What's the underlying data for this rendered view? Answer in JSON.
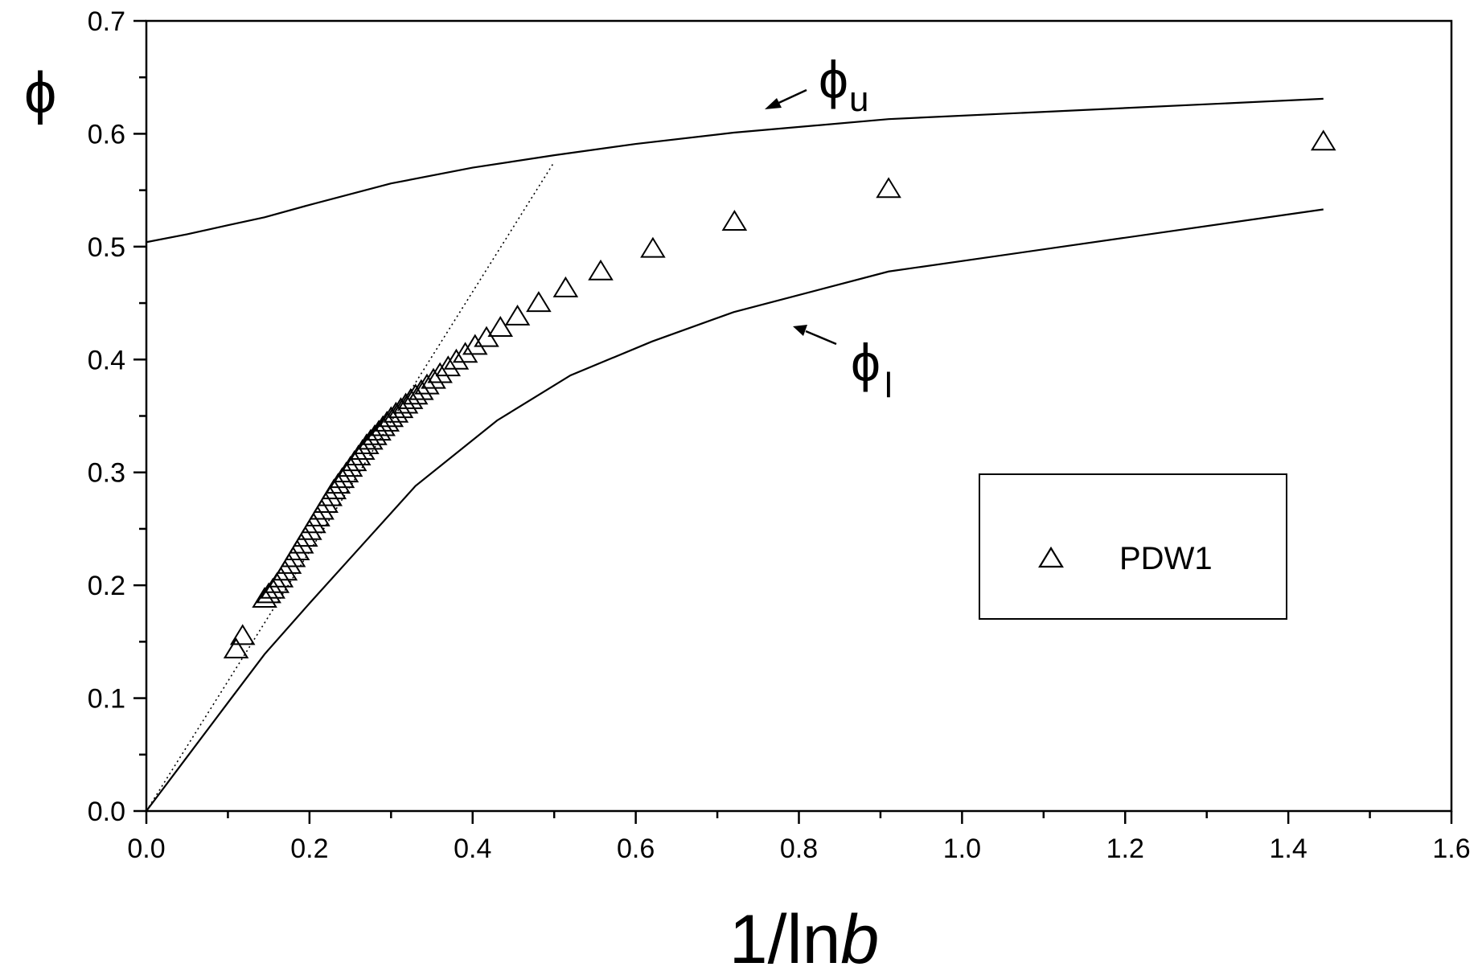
{
  "chart_data": {
    "type": "scatter",
    "xlabel": "1/ln",
    "xlabel_italic": "b",
    "ylabel": "ϕ",
    "xlim": [
      0.0,
      1.6
    ],
    "ylim": [
      0.0,
      0.7
    ],
    "x_ticks": [
      "0.0",
      "0.2",
      "0.4",
      "0.6",
      "0.8",
      "1.0",
      "1.2",
      "1.4",
      "1.6"
    ],
    "y_ticks": [
      "0.0",
      "0.1",
      "0.2",
      "0.3",
      "0.4",
      "0.5",
      "0.6",
      "0.7"
    ],
    "grid": false,
    "legend": {
      "placement": "center-right",
      "entries": [
        {
          "marker": "open-triangle",
          "label": "PDW1"
        }
      ]
    },
    "annotations": [
      {
        "symbol": "ϕ",
        "subscript": "u",
        "points_to": "upper-curve"
      },
      {
        "symbol": "ϕ",
        "subscript": "l",
        "points_to": "lower-curve"
      }
    ],
    "series": [
      {
        "name": "PDW1",
        "style": "open-triangle",
        "x": [
          0.11,
          0.118,
          0.145,
          0.15,
          0.155,
          0.16,
          0.165,
          0.17,
          0.175,
          0.18,
          0.185,
          0.19,
          0.195,
          0.2,
          0.205,
          0.21,
          0.215,
          0.22,
          0.225,
          0.23,
          0.235,
          0.24,
          0.245,
          0.25,
          0.255,
          0.26,
          0.265,
          0.27,
          0.275,
          0.28,
          0.285,
          0.29,
          0.295,
          0.3,
          0.306,
          0.312,
          0.318,
          0.324,
          0.33,
          0.337,
          0.344,
          0.352,
          0.36,
          0.37,
          0.38,
          0.391,
          0.403,
          0.417,
          0.434,
          0.455,
          0.481,
          0.514,
          0.557,
          0.621,
          0.721,
          0.91,
          1.443
        ],
        "y": [
          0.143,
          0.155,
          0.188,
          0.192,
          0.196,
          0.201,
          0.206,
          0.212,
          0.218,
          0.224,
          0.23,
          0.236,
          0.242,
          0.248,
          0.254,
          0.26,
          0.266,
          0.272,
          0.278,
          0.284,
          0.289,
          0.294,
          0.299,
          0.304,
          0.309,
          0.314,
          0.319,
          0.324,
          0.328,
          0.332,
          0.336,
          0.34,
          0.344,
          0.348,
          0.352,
          0.356,
          0.36,
          0.364,
          0.368,
          0.372,
          0.377,
          0.382,
          0.387,
          0.393,
          0.399,
          0.405,
          0.412,
          0.419,
          0.428,
          0.438,
          0.45,
          0.463,
          0.478,
          0.498,
          0.522,
          0.551,
          0.593
        ]
      },
      {
        "name": "ϕu",
        "style": "solid-line",
        "x": [
          0.0,
          0.05,
          0.1,
          0.145,
          0.2,
          0.3,
          0.4,
          0.5,
          0.6,
          0.72,
          0.91,
          1.443
        ],
        "y": [
          0.504,
          0.511,
          0.519,
          0.526,
          0.537,
          0.556,
          0.57,
          0.581,
          0.591,
          0.601,
          0.613,
          0.631
        ]
      },
      {
        "name": "ϕl",
        "style": "solid-line",
        "x": [
          0.0,
          0.05,
          0.1,
          0.145,
          0.2,
          0.25,
          0.33,
          0.43,
          0.52,
          0.62,
          0.72,
          0.91,
          1.443
        ],
        "y": [
          0.0,
          0.048,
          0.096,
          0.139,
          0.184,
          0.224,
          0.288,
          0.346,
          0.386,
          0.416,
          0.442,
          0.478,
          0.533
        ]
      },
      {
        "name": "",
        "style": "dotted-line",
        "x": [
          0.0,
          0.5
        ],
        "y": [
          0.0,
          0.575
        ]
      }
    ]
  }
}
